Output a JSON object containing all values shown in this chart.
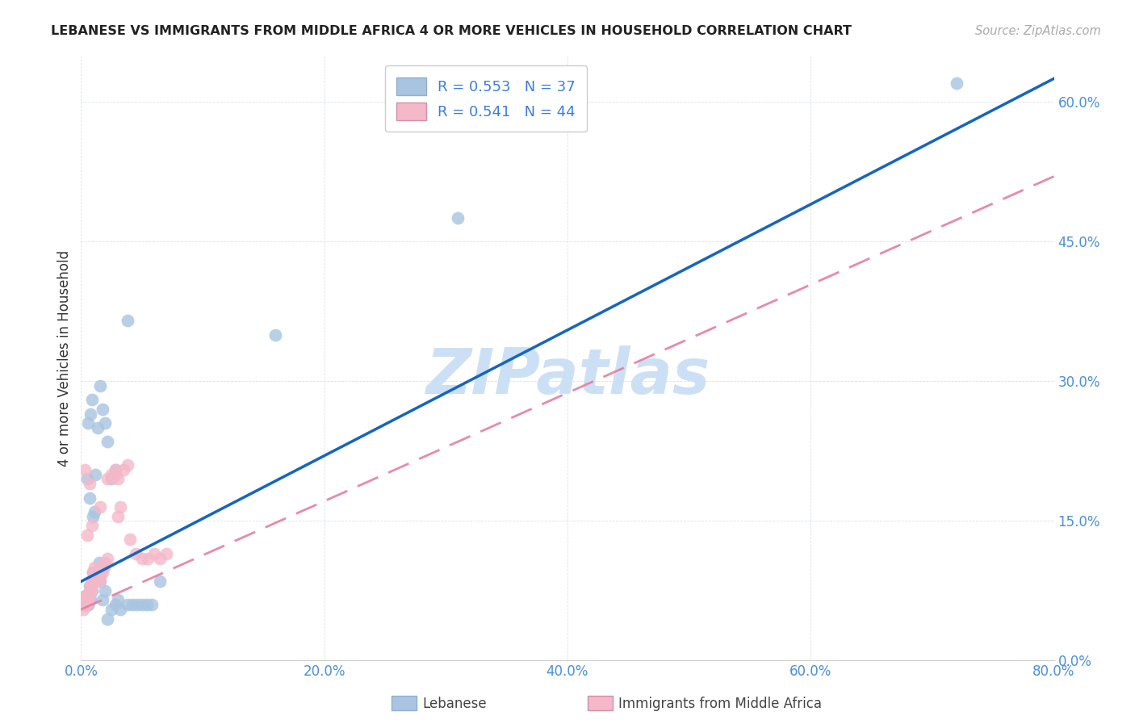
{
  "title": "LEBANESE VS IMMIGRANTS FROM MIDDLE AFRICA 4 OR MORE VEHICLES IN HOUSEHOLD CORRELATION CHART",
  "source": "Source: ZipAtlas.com",
  "ylabel": "4 or more Vehicles in Household",
  "xlim": [
    0,
    0.8
  ],
  "ylim": [
    0,
    0.65
  ],
  "xticks": [
    0.0,
    0.2,
    0.4,
    0.6,
    0.8
  ],
  "xtick_labels": [
    "0.0%",
    "20.0%",
    "40.0%",
    "60.0%",
    "80.0%"
  ],
  "yticks": [
    0.0,
    0.15,
    0.3,
    0.45,
    0.6
  ],
  "ytick_labels": [
    "0.0%",
    "15.0%",
    "30.0%",
    "45.0%",
    "60.0%"
  ],
  "legend_labels": [
    "Lebanese",
    "Immigrants from Middle Africa"
  ],
  "series1_color": "#a8c4e0",
  "series2_color": "#f4b8c8",
  "line1_color": "#1565c0",
  "line2_color": "#e87ca0",
  "watermark": "ZIPatlas",
  "watermark_color": "#cce0f5",
  "R1": 0.553,
  "N1": 37,
  "R2": 0.541,
  "N2": 44,
  "series1_x": [
    0.003,
    0.004,
    0.004,
    0.005,
    0.005,
    0.005,
    0.006,
    0.006,
    0.006,
    0.007,
    0.007,
    0.008,
    0.009,
    0.01,
    0.011,
    0.012,
    0.013,
    0.014,
    0.015,
    0.016,
    0.018,
    0.02,
    0.022,
    0.025,
    0.028,
    0.03,
    0.032,
    0.038,
    0.042,
    0.046,
    0.05,
    0.054,
    0.058,
    0.065,
    0.16,
    0.31,
    0.72
  ],
  "series1_y": [
    0.06,
    0.07,
    0.065,
    0.065,
    0.07,
    0.06,
    0.065,
    0.06,
    0.06,
    0.08,
    0.065,
    0.065,
    0.075,
    0.095,
    0.085,
    0.09,
    0.095,
    0.09,
    0.105,
    0.085,
    0.065,
    0.075,
    0.045,
    0.055,
    0.06,
    0.065,
    0.055,
    0.06,
    0.06,
    0.06,
    0.06,
    0.06,
    0.06,
    0.085,
    0.35,
    0.475,
    0.62
  ],
  "series1_x_upper": [
    0.005,
    0.006,
    0.007,
    0.008,
    0.009,
    0.01,
    0.011,
    0.012,
    0.014,
    0.016,
    0.018,
    0.02,
    0.022,
    0.025,
    0.028,
    0.038
  ],
  "series1_y_upper": [
    0.195,
    0.255,
    0.175,
    0.265,
    0.28,
    0.155,
    0.16,
    0.2,
    0.25,
    0.295,
    0.27,
    0.255,
    0.235,
    0.195,
    0.205,
    0.365
  ],
  "series2_x": [
    0.001,
    0.002,
    0.002,
    0.003,
    0.003,
    0.003,
    0.004,
    0.004,
    0.004,
    0.005,
    0.005,
    0.005,
    0.006,
    0.006,
    0.007,
    0.007,
    0.008,
    0.008,
    0.009,
    0.01,
    0.011,
    0.012,
    0.013,
    0.014,
    0.015,
    0.016,
    0.017,
    0.018,
    0.019,
    0.02,
    0.022,
    0.025,
    0.028,
    0.03,
    0.032,
    0.035,
    0.038,
    0.04,
    0.045,
    0.05,
    0.055,
    0.06,
    0.065,
    0.07
  ],
  "series2_y": [
    0.06,
    0.055,
    0.06,
    0.06,
    0.065,
    0.06,
    0.06,
    0.065,
    0.07,
    0.06,
    0.065,
    0.07,
    0.065,
    0.065,
    0.07,
    0.075,
    0.075,
    0.08,
    0.085,
    0.095,
    0.1,
    0.09,
    0.095,
    0.095,
    0.085,
    0.09,
    0.1,
    0.095,
    0.1,
    0.105,
    0.11,
    0.2,
    0.205,
    0.195,
    0.165,
    0.205,
    0.21,
    0.13,
    0.115,
    0.11,
    0.11,
    0.115,
    0.11,
    0.115
  ],
  "series2_x_upper": [
    0.003,
    0.005,
    0.007,
    0.009,
    0.016,
    0.022,
    0.028,
    0.03
  ],
  "series2_y_upper": [
    0.205,
    0.135,
    0.19,
    0.145,
    0.165,
    0.195,
    0.2,
    0.155
  ],
  "line1_x0": 0.0,
  "line1_y0": 0.085,
  "line1_x1": 0.8,
  "line1_y1": 0.625,
  "line2_x0": 0.0,
  "line2_y0": 0.055,
  "line2_x1": 0.8,
  "line2_y1": 0.52
}
